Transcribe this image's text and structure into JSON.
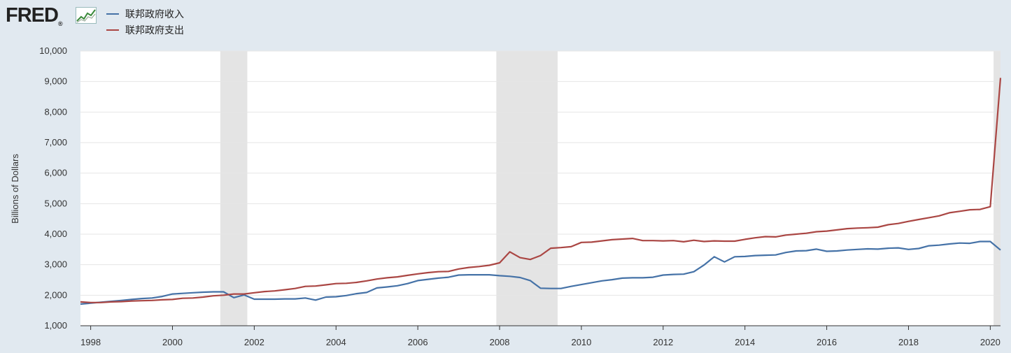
{
  "logo": {
    "text": "FRED",
    "mark": "®"
  },
  "legend": [
    {
      "label": "联邦政府收入",
      "color": "#4572a7"
    },
    {
      "label": "联邦政府支出",
      "color": "#aa4643"
    }
  ],
  "chart_data": {
    "type": "line",
    "title": "",
    "xlabel": "",
    "ylabel": "Billions of Dollars",
    "xlim": [
      1997.75,
      2020.25
    ],
    "ylim": [
      1000,
      10000
    ],
    "yticks": [
      1000,
      2000,
      3000,
      4000,
      5000,
      6000,
      7000,
      8000,
      9000,
      10000
    ],
    "ytick_labels": [
      "1,000",
      "2,000",
      "3,000",
      "4,000",
      "5,000",
      "6,000",
      "7,000",
      "8,000",
      "9,000",
      "10,000"
    ],
    "xticks": [
      1998,
      2000,
      2002,
      2004,
      2006,
      2008,
      2010,
      2012,
      2014,
      2016,
      2018,
      2020
    ],
    "xtick_labels": [
      "1998",
      "2000",
      "2002",
      "2004",
      "2006",
      "2008",
      "2010",
      "2012",
      "2014",
      "2016",
      "2018",
      "2020"
    ],
    "recessions": [
      [
        2001.17,
        2001.83
      ],
      [
        2007.92,
        2009.42
      ],
      [
        2020.08,
        2020.25
      ]
    ],
    "x": [
      1997.75,
      1998.0,
      1998.25,
      1998.5,
      1998.75,
      1999.0,
      1999.25,
      1999.5,
      1999.75,
      2000.0,
      2000.25,
      2000.5,
      2000.75,
      2001.0,
      2001.25,
      2001.5,
      2001.75,
      2002.0,
      2002.25,
      2002.5,
      2002.75,
      2003.0,
      2003.25,
      2003.5,
      2003.75,
      2004.0,
      2004.25,
      2004.5,
      2004.75,
      2005.0,
      2005.25,
      2005.5,
      2005.75,
      2006.0,
      2006.25,
      2006.5,
      2006.75,
      2007.0,
      2007.25,
      2007.5,
      2007.75,
      2008.0,
      2008.25,
      2008.5,
      2008.75,
      2009.0,
      2009.25,
      2009.5,
      2009.75,
      2010.0,
      2010.25,
      2010.5,
      2010.75,
      2011.0,
      2011.25,
      2011.5,
      2011.75,
      2012.0,
      2012.25,
      2012.5,
      2012.75,
      2013.0,
      2013.25,
      2013.5,
      2013.75,
      2014.0,
      2014.25,
      2014.5,
      2014.75,
      2015.0,
      2015.25,
      2015.5,
      2015.75,
      2016.0,
      2016.25,
      2016.5,
      2016.75,
      2017.0,
      2017.25,
      2017.5,
      2017.75,
      2018.0,
      2018.25,
      2018.5,
      2018.75,
      2019.0,
      2019.25,
      2019.5,
      2019.75,
      2020.0,
      2020.25
    ],
    "series": [
      {
        "name": "联邦政府收入",
        "color": "#4572a7",
        "values": [
          1710,
          1740,
          1770,
          1800,
          1830,
          1860,
          1890,
          1910,
          1960,
          2040,
          2060,
          2080,
          2100,
          2110,
          2110,
          1920,
          2010,
          1870,
          1870,
          1870,
          1880,
          1880,
          1910,
          1840,
          1940,
          1950,
          1990,
          2050,
          2090,
          2240,
          2270,
          2310,
          2380,
          2480,
          2520,
          2560,
          2590,
          2660,
          2670,
          2670,
          2670,
          2640,
          2620,
          2580,
          2480,
          2230,
          2220,
          2220,
          2290,
          2350,
          2410,
          2470,
          2510,
          2560,
          2570,
          2570,
          2590,
          2660,
          2680,
          2690,
          2770,
          2990,
          3260,
          3090,
          3260,
          3270,
          3300,
          3310,
          3320,
          3400,
          3450,
          3460,
          3510,
          3440,
          3450,
          3480,
          3500,
          3520,
          3510,
          3540,
          3550,
          3500,
          3530,
          3620,
          3640,
          3680,
          3710,
          3700,
          3760,
          3760,
          3480
        ]
      },
      {
        "name": "联邦政府支出",
        "color": "#aa4643",
        "values": [
          1780,
          1760,
          1760,
          1780,
          1790,
          1810,
          1820,
          1830,
          1850,
          1860,
          1900,
          1910,
          1940,
          1980,
          2000,
          2040,
          2040,
          2080,
          2120,
          2140,
          2180,
          2220,
          2290,
          2300,
          2340,
          2380,
          2390,
          2420,
          2470,
          2530,
          2570,
          2600,
          2650,
          2700,
          2740,
          2770,
          2780,
          2860,
          2910,
          2940,
          2980,
          3060,
          3420,
          3230,
          3170,
          3300,
          3540,
          3560,
          3590,
          3730,
          3740,
          3780,
          3820,
          3840,
          3860,
          3790,
          3790,
          3780,
          3790,
          3750,
          3800,
          3760,
          3780,
          3770,
          3770,
          3830,
          3880,
          3920,
          3910,
          3970,
          4000,
          4030,
          4080,
          4100,
          4140,
          4180,
          4200,
          4210,
          4230,
          4310,
          4350,
          4420,
          4480,
          4540,
          4600,
          4700,
          4750,
          4800,
          4810,
          4900,
          9120
        ]
      }
    ]
  }
}
